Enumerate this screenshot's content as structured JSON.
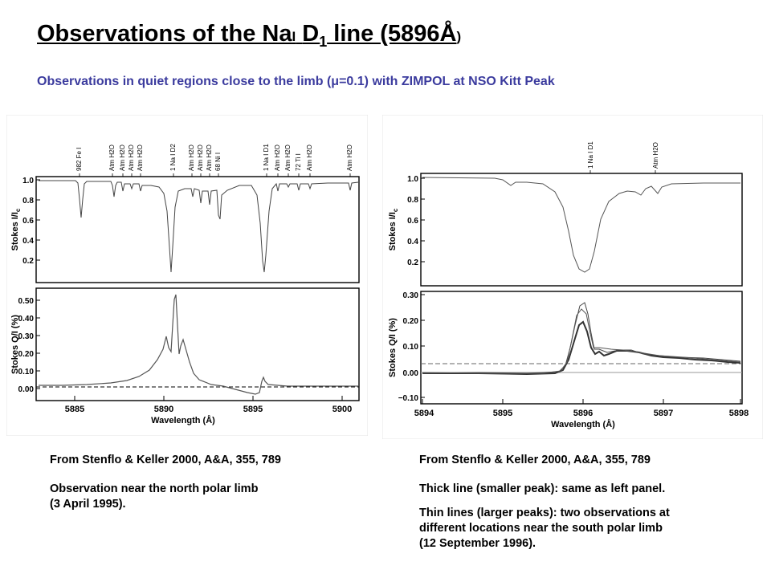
{
  "title": {
    "prefix": "Observations of the Na",
    "roman": "I",
    "d": "D",
    "sub": "1",
    "suffix": " line (5896",
    "angstrom": "Å",
    "close": ")"
  },
  "subtitle": {
    "before": "Observations in quiet regions close to the limb (",
    "mu": "μ",
    "after": "=0.1) with ZIMPOL at NSO Kitt Peak"
  },
  "left": {
    "source": "From Stenflo & Keller 2000, A&A, 355, 789",
    "caption_line1": "Observation near the north polar limb",
    "caption_line2": "(3 April 1995).",
    "xlabel": "Wavelength (Å)",
    "ylabel_top": "Stokes I/I",
    "ylabel_top_sub": "c",
    "ylabel_bottom": "Stokes Q/I (%)",
    "top_ticks": [
      "1.0",
      "0.8",
      "0.6",
      "0.4",
      "0.2"
    ],
    "bottom_ticks": [
      "0.50",
      "0.40",
      "0.30",
      "0.20",
      "0.10",
      "0.00"
    ],
    "x_ticks": [
      "5885",
      "5890",
      "5895",
      "5900"
    ],
    "line_labels": [
      "982 Fe I",
      "Atm H2O",
      "Atm H2O",
      "Atm H2O",
      "Atm H2O",
      "1 Na I D2",
      "Atm H2O",
      "Atm H2O",
      "Atm H2O",
      "68 Ni I",
      "1 Na I D1",
      "Atm H2O",
      "Atm H2O",
      "72 Ti I",
      "Atm H2O",
      "Atm H2O"
    ]
  },
  "right": {
    "source": "From Stenflo & Keller 2000, A&A, 355, 789",
    "caption1": "Thick line (smaller peak): same as left panel.",
    "caption2_line1": "Thin lines (larger peaks): two observations at",
    "caption2_line2": "different locations near the south polar limb",
    "caption2_line3": "(12 September 1996).",
    "xlabel": "Wavelength (Å)",
    "ylabel_top": "Stokes I/I",
    "ylabel_top_sub": "c",
    "ylabel_bottom": "Stokes Q/I (%)",
    "top_ticks": [
      "1.0",
      "0.8",
      "0.6",
      "0.4",
      "0.2"
    ],
    "bottom_ticks": [
      "0.30",
      "0.20",
      "0.10",
      "0.00",
      "−0.10"
    ],
    "x_ticks": [
      "5894",
      "5895",
      "5896",
      "5897",
      "5898"
    ],
    "line_labels": [
      "1 Na I D1",
      "Atm H2O"
    ]
  }
}
